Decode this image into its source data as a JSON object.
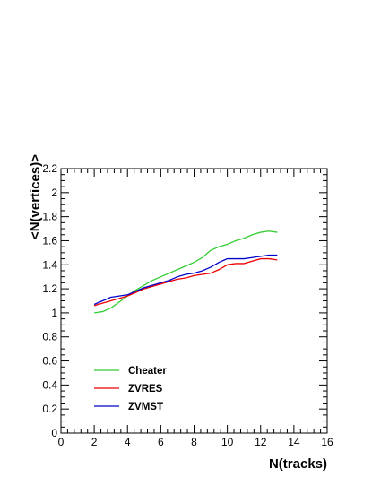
{
  "chart_data": {
    "type": "line",
    "xlabel": "N(tracks)",
    "ylabel": "<N(vertices)>",
    "xlim": [
      0,
      16
    ],
    "ylim": [
      0,
      2.2
    ],
    "x_ticks": [
      "0",
      "2",
      "4",
      "6",
      "8",
      "10",
      "12",
      "14",
      "16"
    ],
    "y_ticks": [
      "0",
      "0.2",
      "0.4",
      "0.6",
      "0.8",
      "1",
      "1.2",
      "1.4",
      "1.6",
      "1.8",
      "2",
      "2.2"
    ],
    "grid": false,
    "legend_position": "bottom-left",
    "series": [
      {
        "name": "Cheater",
        "color": "#33cc33",
        "x": [
          2,
          2.5,
          3,
          3.5,
          4,
          4.5,
          5,
          5.5,
          6,
          6.5,
          7,
          7.5,
          8,
          8.5,
          9,
          9.5,
          10,
          10.5,
          11,
          11.5,
          12,
          12.5,
          13
        ],
        "y": [
          1.0,
          1.01,
          1.04,
          1.09,
          1.14,
          1.19,
          1.23,
          1.27,
          1.3,
          1.33,
          1.36,
          1.39,
          1.42,
          1.46,
          1.52,
          1.55,
          1.57,
          1.6,
          1.62,
          1.65,
          1.67,
          1.68,
          1.67
        ]
      },
      {
        "name": "ZVRES",
        "color": "#ee0000",
        "x": [
          2,
          2.5,
          3,
          3.5,
          4,
          4.5,
          5,
          5.5,
          6,
          6.5,
          7,
          7.5,
          8,
          8.5,
          9,
          9.5,
          10,
          10.5,
          11,
          11.5,
          12,
          12.5,
          13
        ],
        "y": [
          1.06,
          1.08,
          1.1,
          1.12,
          1.14,
          1.17,
          1.2,
          1.22,
          1.24,
          1.26,
          1.28,
          1.29,
          1.31,
          1.32,
          1.33,
          1.36,
          1.4,
          1.41,
          1.41,
          1.43,
          1.45,
          1.45,
          1.44
        ]
      },
      {
        "name": "ZVMST",
        "color": "#0000cc",
        "x": [
          2,
          2.5,
          3,
          3.5,
          4,
          4.5,
          5,
          5.5,
          6,
          6.5,
          7,
          7.5,
          8,
          8.5,
          9,
          9.5,
          10,
          10.5,
          11,
          11.5,
          12,
          12.5,
          13
        ],
        "y": [
          1.07,
          1.1,
          1.13,
          1.14,
          1.15,
          1.18,
          1.21,
          1.23,
          1.25,
          1.27,
          1.3,
          1.32,
          1.33,
          1.35,
          1.38,
          1.42,
          1.45,
          1.45,
          1.45,
          1.46,
          1.47,
          1.48,
          1.48
        ]
      }
    ]
  }
}
